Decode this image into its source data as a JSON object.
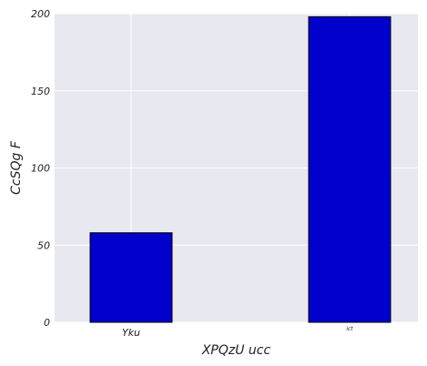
{
  "chart_data": {
    "type": "bar",
    "title": "",
    "xlabel": "XPQzU  ucc",
    "ylabel": "CcSQg  F",
    "categories": [
      "Yku",
      "ict"
    ],
    "values": [
      58,
      198
    ],
    "ylim": [
      0,
      200
    ],
    "yticks": [
      0,
      50,
      100,
      150,
      200
    ],
    "grid": true,
    "bar_color": "#0000cc",
    "bar_edge_color": "#000000",
    "background_color": "#e8e8f0",
    "grid_color": "#ffffff"
  }
}
